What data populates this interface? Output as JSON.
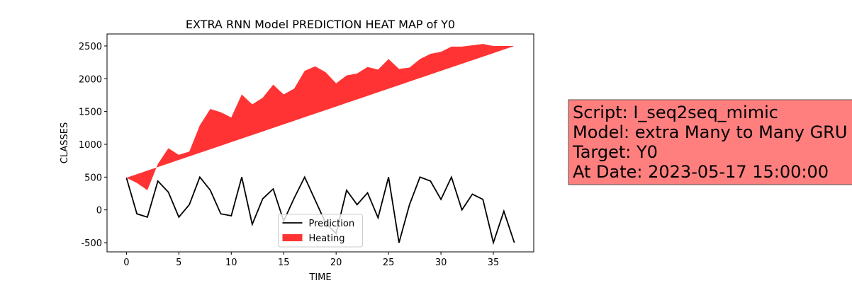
{
  "chart_data": {
    "type": "line-fill",
    "title": "EXTRA RNN Model PREDICTION HEAT MAP of Y0",
    "x_label": "TIME",
    "y_label": "CLASSES",
    "x": [
      0,
      1,
      2,
      3,
      4,
      5,
      6,
      7,
      8,
      9,
      10,
      11,
      12,
      13,
      14,
      15,
      16,
      17,
      18,
      19,
      20,
      21,
      22,
      23,
      24,
      25,
      26,
      27,
      28,
      29,
      30,
      31,
      32,
      33,
      34,
      35,
      36,
      37
    ],
    "series": [
      {
        "name": "Prediction",
        "kind": "line",
        "color": "#000000",
        "values": [
          490,
          -60,
          -110,
          440,
          270,
          -110,
          80,
          500,
          300,
          -60,
          -90,
          500,
          -220,
          170,
          320,
          -170,
          180,
          500,
          150,
          -200,
          -360,
          300,
          80,
          260,
          -120,
          500,
          -500,
          80,
          500,
          440,
          160,
          500,
          0,
          240,
          160,
          -500,
          -20,
          -500
        ]
      },
      {
        "name": "Heating",
        "kind": "fill",
        "color": "#ff3333",
        "values": [
          490,
          410,
          300,
          700,
          940,
          840,
          890,
          1290,
          1540,
          1490,
          1410,
          1760,
          1610,
          1710,
          1910,
          1760,
          1850,
          2120,
          2190,
          2100,
          1930,
          2050,
          2080,
          2180,
          2140,
          2300,
          2150,
          2170,
          2300,
          2380,
          2410,
          2490,
          2490,
          2510,
          2530,
          2500,
          2500,
          2500
        ],
        "base": [
          490,
          544,
          599,
          653,
          707,
          762,
          816,
          870,
          925,
          979,
          1033,
          1088,
          1142,
          1196,
          1251,
          1305,
          1359,
          1414,
          1468,
          1522,
          1576,
          1631,
          1685,
          1739,
          1794,
          1848,
          1902,
          1957,
          2011,
          2065,
          2120,
          2174,
          2228,
          2283,
          2337,
          2391,
          2446,
          2500
        ]
      }
    ],
    "xlim": [
      -1.85,
      38.85
    ],
    "xticks": [
      0,
      5,
      10,
      15,
      20,
      25,
      30,
      35
    ],
    "ylim": [
      -640,
      2683
    ],
    "yticks": [
      -500,
      0,
      500,
      1000,
      1500,
      2000,
      2500
    ],
    "legend": "lower center"
  },
  "annotation_box": {
    "lines": [
      "Script: I_seq2seq_mimic",
      "Model: extra Many to Many GRU",
      "Target: Y0",
      "At Date: 2023-05-17 15:00:00"
    ],
    "color": "#ff7f7f"
  }
}
